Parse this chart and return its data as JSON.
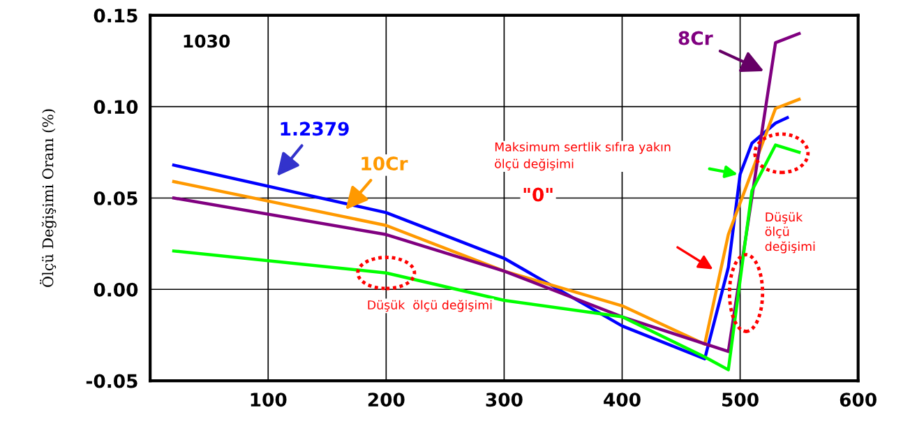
{
  "chart_data": {
    "type": "line",
    "ylabel": "Ölçü Değişimi Oranı (%)",
    "xlim": [
      0,
      600
    ],
    "xticks": [
      100,
      200,
      300,
      400,
      500,
      600
    ],
    "ylim": [
      -0.05,
      0.15
    ],
    "yticks": [
      {
        "value": -0.05,
        "label": "-0.05"
      },
      {
        "value": 0,
        "label": "0.00"
      },
      {
        "value": 0.05,
        "label": "0.05"
      },
      {
        "value": 0.1,
        "label": "0.10"
      },
      {
        "value": 0.15,
        "label": "0.15"
      }
    ],
    "grid": true,
    "legend": false,
    "marker": "none",
    "line_style": "solid",
    "series": [
      {
        "name": "1.2379",
        "color": "#0000ff",
        "x": [
          20,
          200,
          300,
          400,
          470,
          490,
          500,
          510,
          530,
          540
        ],
        "values": [
          0.068,
          0.042,
          0.017,
          -0.02,
          -0.038,
          0.012,
          0.063,
          0.08,
          0.091,
          0.094
        ]
      },
      {
        "name": "10Cr",
        "color": "#ff9900",
        "x": [
          20,
          200,
          300,
          400,
          470,
          490,
          530,
          550
        ],
        "values": [
          0.059,
          0.035,
          0.01,
          -0.009,
          -0.03,
          0.03,
          0.099,
          0.104
        ]
      },
      {
        "name": "8Cr",
        "color": "#800080",
        "x": [
          20,
          200,
          300,
          400,
          490,
          530,
          550
        ],
        "values": [
          0.05,
          0.03,
          0.01,
          -0.015,
          -0.034,
          0.135,
          0.14
        ]
      },
      {
        "color": "#00ff00",
        "x": [
          20,
          200,
          300,
          400,
          470,
          490,
          510,
          530,
          550
        ],
        "values": [
          0.021,
          0.009,
          -0.006,
          -0.015,
          -0.037,
          -0.044,
          0.054,
          0.079,
          0.075
        ]
      }
    ],
    "annotations": [
      "1030",
      "Maksimum sertlik sıfıra yakın\nölçü değişimi",
      "\"0\"",
      "Düşük\nölçü\ndeğişimi",
      "Düşük  ölçü değişimi"
    ]
  }
}
